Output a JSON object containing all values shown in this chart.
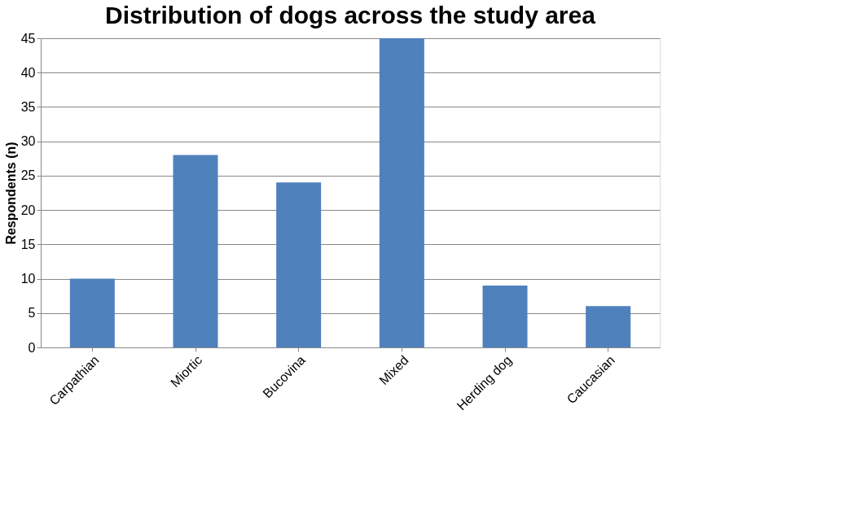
{
  "chart_data": {
    "type": "bar",
    "title": "Distribution of dogs across the study area",
    "ylabel": "Respondents (n)",
    "categories": [
      "Carpathian",
      "Miortic",
      "Bucovina",
      "Mixed",
      "Herding dog",
      "Caucasian"
    ],
    "values": [
      10,
      28,
      24,
      45,
      9,
      6
    ],
    "color": "#4f81bd",
    "ylim": [
      0,
      45
    ],
    "yticks": [
      0,
      5,
      10,
      15,
      20,
      25,
      30,
      35,
      40,
      45
    ],
    "grid": "y"
  }
}
